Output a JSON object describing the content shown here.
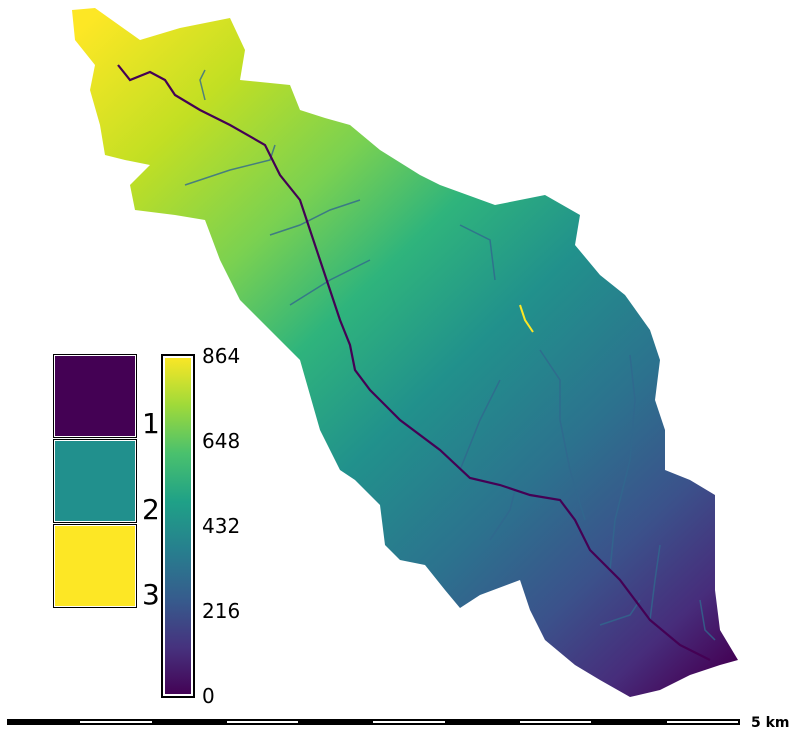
{
  "map": {
    "elevation_colormap": [
      "#fde725",
      "#a0da39",
      "#4ac16d",
      "#1fa187",
      "#277f8e",
      "#365c8d",
      "#46327e",
      "#440154"
    ],
    "stream_color": "#440154"
  },
  "category_legend": {
    "items": [
      {
        "label": "1",
        "color": "#440154"
      },
      {
        "label": "2",
        "color": "#21908d"
      },
      {
        "label": "3",
        "color": "#fde725"
      }
    ]
  },
  "colorbar": {
    "min": 0,
    "max": 864,
    "ticks": [
      "864",
      "648",
      "432",
      "216",
      "0"
    ]
  },
  "scale_bar": {
    "label": "5 km",
    "segments": 10
  }
}
